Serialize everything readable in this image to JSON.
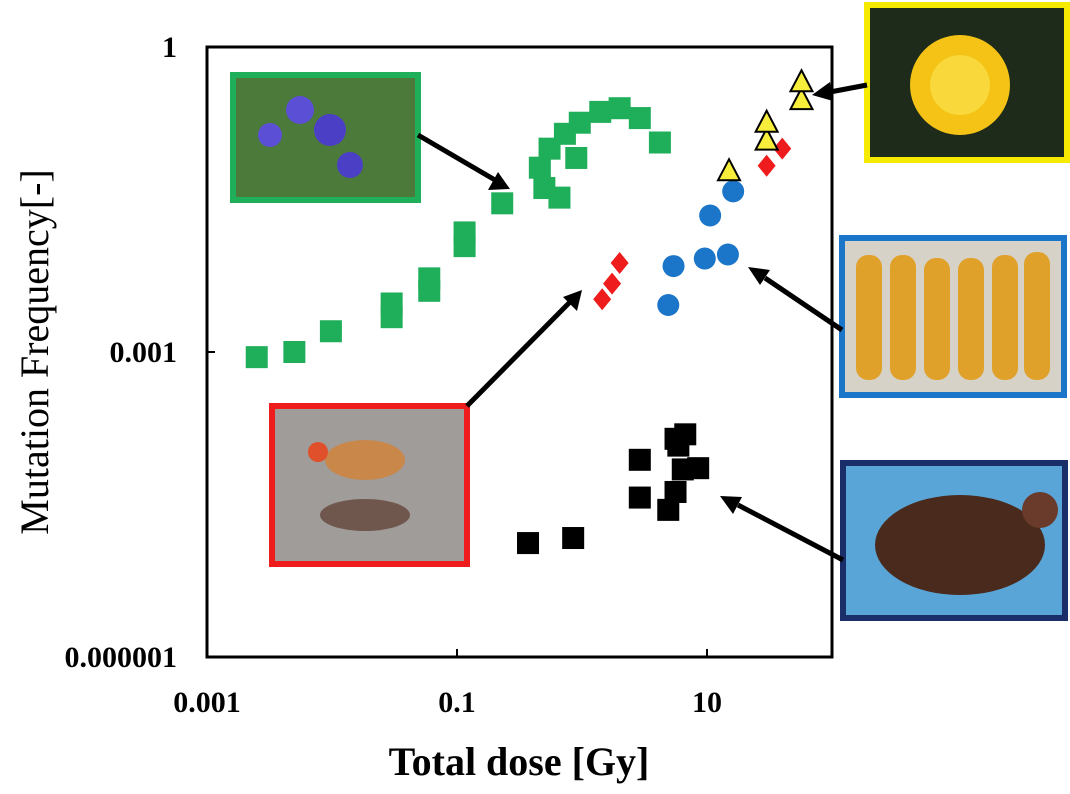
{
  "chart_data": {
    "type": "scatter",
    "xlabel": "Total dose [Gy]",
    "ylabel": "Mutation Frequency[-]",
    "xscale": "log",
    "yscale": "log",
    "xlim": [
      0.001,
      100
    ],
    "ylim": [
      1e-06,
      1
    ],
    "xticks": [
      0.001,
      0.1,
      10
    ],
    "yticks": [
      1e-06,
      0.001,
      1
    ],
    "series": [
      {
        "color": "#1fae5a",
        "marker": "square",
        "x": [
          0.0025,
          0.005,
          0.0098,
          0.03,
          0.03,
          0.06,
          0.06,
          0.115,
          0.115,
          0.23,
          0.46,
          0.5,
          0.66,
          0.55,
          0.73,
          0.96,
          1.4,
          2.0,
          2.9,
          4.2,
          0.9
        ],
        "values": [
          0.00089,
          0.001,
          0.0016,
          0.0022,
          0.003,
          0.004,
          0.0053,
          0.011,
          0.015,
          0.029,
          0.065,
          0.041,
          0.033,
          0.1,
          0.14,
          0.18,
          0.23,
          0.25,
          0.2,
          0.115,
          0.081
        ]
      },
      {
        "color": "#ee1c1c",
        "marker": "diamond",
        "x": [
          1.45,
          1.74,
          2.0,
          30,
          40
        ],
        "values": [
          0.0033,
          0.0047,
          0.0075,
          0.068,
          0.1
        ]
      },
      {
        "color": "#1b75c8",
        "marker": "circle",
        "x": [
          4.9,
          5.4,
          9.6,
          14.7,
          10.6,
          16.2
        ],
        "values": [
          0.0029,
          0.007,
          0.0083,
          0.0091,
          0.022,
          0.038
        ]
      },
      {
        "color": "#f7ee3c",
        "marker": "triangle",
        "x": [
          15,
          30,
          30,
          57,
          57
        ],
        "values": [
          0.06,
          0.12,
          0.18,
          0.3,
          0.45
        ]
      },
      {
        "color": "#000000",
        "marker": "square",
        "x": [
          0.37,
          0.85,
          2.9,
          2.9,
          4.9,
          5.6,
          6.4,
          8.5,
          5.9,
          6.7,
          5.6
        ],
        "values": [
          1.32e-05,
          1.48e-05,
          3.7e-05,
          8.7e-05,
          2.8e-05,
          4.2e-05,
          7e-05,
          7.2e-05,
          0.00012,
          0.000155,
          0.00014
        ]
      }
    ]
  }
}
